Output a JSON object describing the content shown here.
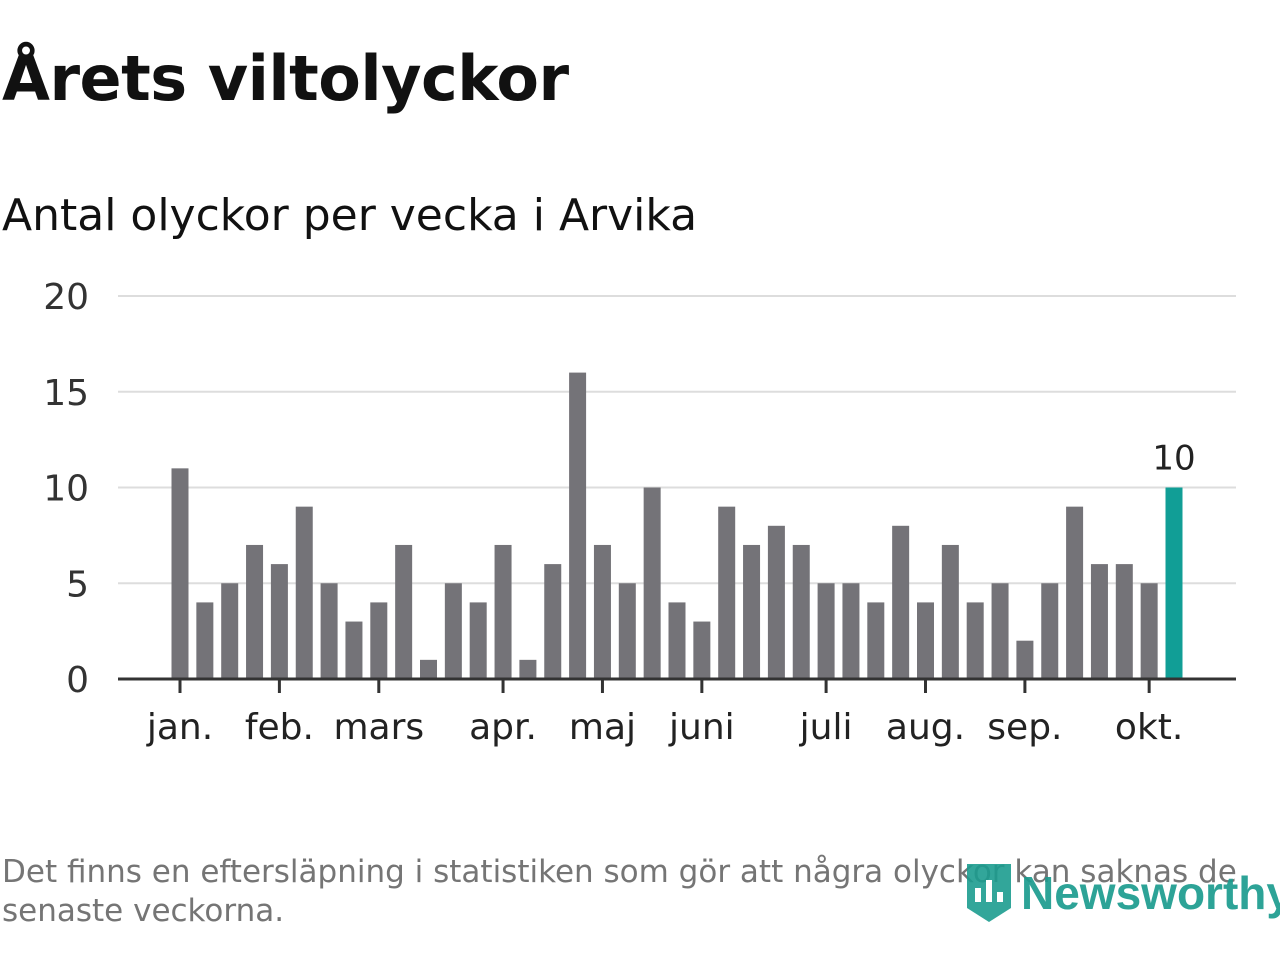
{
  "title": "Årets viltolyckor",
  "subtitle": "Antal olyckor per vecka i Arvika",
  "footnote": "Det finns en eftersläpning i statistiken som gör att några olyckor kan saknas de senaste veckorna.",
  "brand": {
    "name": "Newsworthy",
    "icon": "bar-chart-badge-icon",
    "color": "#1c9c8f"
  },
  "colors": {
    "bar": "#747378",
    "highlight": "#119e96",
    "grid": "#dddddd",
    "axis": "#333333"
  },
  "chart_data": {
    "type": "bar",
    "ylim": [
      0,
      20
    ],
    "yticks": [
      0,
      5,
      10,
      15,
      20
    ],
    "grid": true,
    "month_labels": [
      {
        "label": "jan.",
        "week_index": 0
      },
      {
        "label": "feb.",
        "week_index": 4
      },
      {
        "label": "mars",
        "week_index": 8
      },
      {
        "label": "apr.",
        "week_index": 13
      },
      {
        "label": "maj",
        "week_index": 17
      },
      {
        "label": "juni",
        "week_index": 21
      },
      {
        "label": "juli",
        "week_index": 26
      },
      {
        "label": "aug.",
        "week_index": 30
      },
      {
        "label": "sep.",
        "week_index": 34
      },
      {
        "label": "okt.",
        "week_index": 39
      }
    ],
    "values": [
      11,
      4,
      5,
      7,
      6,
      9,
      5,
      3,
      4,
      7,
      1,
      5,
      4,
      7,
      1,
      6,
      16,
      7,
      5,
      10,
      4,
      3,
      9,
      7,
      8,
      7,
      5,
      5,
      4,
      8,
      4,
      7,
      4,
      5,
      2,
      5,
      9,
      6,
      6,
      5,
      10
    ],
    "highlight_index": 40,
    "highlight_label": "10"
  }
}
